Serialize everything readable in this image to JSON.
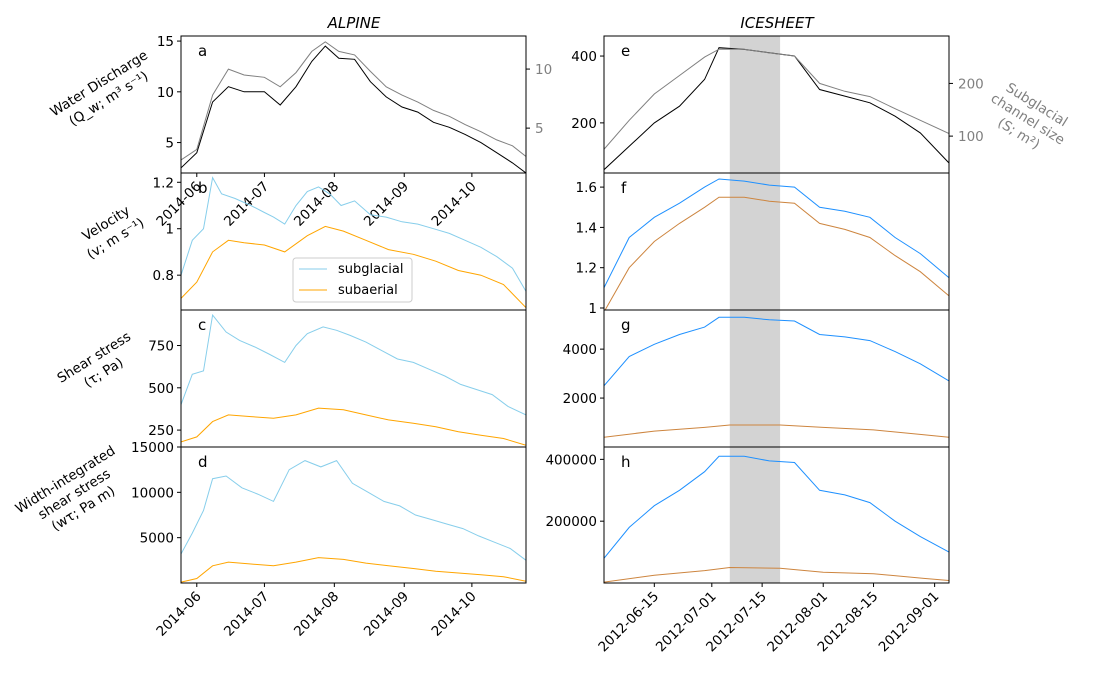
{
  "figure": {
    "columns": [
      {
        "key": "alpine",
        "title": "ALPINE"
      },
      {
        "key": "icesheet",
        "title": "ICESHEET"
      }
    ],
    "row_labels": [
      [
        "Water Discharge",
        "(Q_w; m³ s⁻¹)"
      ],
      [
        "Velocity",
        "(v; m s⁻¹)"
      ],
      [
        "Shear stress",
        "(τ; Pa)"
      ],
      [
        "Width-integrated",
        "shear stress",
        "(wτ; Pa m)"
      ]
    ],
    "right_label": [
      "Subglacial",
      "channel size",
      "(S; m²)"
    ],
    "colors": {
      "discharge": "#000000",
      "channel_size": "#808080",
      "subglacial_alpine": "#87ceeb",
      "subaerial_alpine": "#ffa500",
      "subglacial_icesheet": "#1e90ff",
      "subaerial_icesheet": "#cd853f",
      "shade": "#d3d3d3",
      "right_axis": "#808080"
    },
    "legend": {
      "entries": [
        "subglacial",
        "subaerial"
      ]
    }
  },
  "chart_data": [
    {
      "panel": "a",
      "column": "ALPINE",
      "type": "line",
      "x_type": "date",
      "xlim": [
        "2014-05-25",
        "2014-10-25"
      ],
      "xticks": [
        "2014-06",
        "2014-07",
        "2014-08",
        "2014-09",
        "2014-10"
      ],
      "ylabel": "Water Discharge (Q_w; m³ s⁻¹)",
      "ylim": [
        2,
        15.5
      ],
      "yticks": [
        5,
        10,
        15
      ],
      "y2lim": [
        1.2,
        12.8
      ],
      "y2ticks": [
        5,
        10
      ],
      "series": [
        {
          "axis": "left",
          "color": "#000000",
          "x": [
            "2014-05-25",
            "2014-06-01",
            "2014-06-08",
            "2014-06-15",
            "2014-06-22",
            "2014-07-01",
            "2014-07-08",
            "2014-07-15",
            "2014-07-22",
            "2014-07-28",
            "2014-08-03",
            "2014-08-10",
            "2014-08-17",
            "2014-08-24",
            "2014-08-31",
            "2014-09-07",
            "2014-09-14",
            "2014-09-21",
            "2014-09-28",
            "2014-10-05",
            "2014-10-12",
            "2014-10-19",
            "2014-10-25"
          ],
          "y": [
            2.5,
            4.0,
            9.0,
            10.5,
            10.0,
            10.0,
            8.7,
            10.5,
            13.0,
            14.5,
            13.3,
            13.2,
            11.0,
            9.5,
            8.5,
            8.0,
            7.0,
            6.5,
            5.8,
            5.0,
            4.0,
            3.0,
            2.0
          ]
        },
        {
          "axis": "right",
          "color": "#808080",
          "x": [
            "2014-05-25",
            "2014-06-01",
            "2014-06-08",
            "2014-06-15",
            "2014-06-22",
            "2014-07-01",
            "2014-07-08",
            "2014-07-15",
            "2014-07-22",
            "2014-07-28",
            "2014-08-03",
            "2014-08-10",
            "2014-08-17",
            "2014-08-24",
            "2014-08-31",
            "2014-09-07",
            "2014-09-14",
            "2014-09-21",
            "2014-09-28",
            "2014-10-05",
            "2014-10-12",
            "2014-10-19",
            "2014-10-25"
          ],
          "y": [
            2.3,
            3.2,
            7.8,
            10.0,
            9.5,
            9.3,
            8.5,
            9.7,
            11.5,
            12.3,
            11.5,
            11.2,
            9.8,
            8.5,
            7.8,
            7.2,
            6.5,
            6.0,
            5.3,
            4.7,
            4.0,
            3.5,
            2.6
          ]
        }
      ]
    },
    {
      "panel": "b",
      "column": "ALPINE",
      "type": "line",
      "x_type": "date",
      "xlim": [
        "2014-05-25",
        "2014-10-25"
      ],
      "ylabel": "Velocity (v; m s⁻¹)",
      "ylim": [
        0.65,
        1.24
      ],
      "yticks": [
        0.8,
        1.0,
        1.2
      ],
      "series": [
        {
          "name": "subglacial",
          "color": "#87ceeb",
          "x": [
            "2014-05-25",
            "2014-05-30",
            "2014-06-04",
            "2014-06-08",
            "2014-06-12",
            "2014-06-18",
            "2014-06-25",
            "2014-07-01",
            "2014-07-05",
            "2014-07-10",
            "2014-07-15",
            "2014-07-20",
            "2014-07-25",
            "2014-07-30",
            "2014-08-04",
            "2014-08-10",
            "2014-08-17",
            "2014-08-24",
            "2014-08-31",
            "2014-09-07",
            "2014-09-14",
            "2014-09-21",
            "2014-09-28",
            "2014-10-05",
            "2014-10-12",
            "2014-10-19",
            "2014-10-25"
          ],
          "y": [
            0.8,
            0.95,
            1.0,
            1.22,
            1.15,
            1.13,
            1.1,
            1.07,
            1.05,
            1.02,
            1.1,
            1.16,
            1.18,
            1.15,
            1.1,
            1.12,
            1.06,
            1.05,
            1.03,
            1.02,
            1.0,
            0.98,
            0.95,
            0.92,
            0.88,
            0.83,
            0.73
          ]
        },
        {
          "name": "subaerial",
          "color": "#ffa500",
          "x": [
            "2014-05-25",
            "2014-06-01",
            "2014-06-08",
            "2014-06-15",
            "2014-06-22",
            "2014-07-01",
            "2014-07-10",
            "2014-07-20",
            "2014-07-28",
            "2014-08-05",
            "2014-08-15",
            "2014-08-25",
            "2014-09-05",
            "2014-09-15",
            "2014-09-25",
            "2014-10-05",
            "2014-10-15",
            "2014-10-25"
          ],
          "y": [
            0.7,
            0.77,
            0.9,
            0.95,
            0.94,
            0.93,
            0.9,
            0.97,
            1.01,
            0.99,
            0.95,
            0.91,
            0.89,
            0.86,
            0.82,
            0.8,
            0.76,
            0.66
          ]
        }
      ]
    },
    {
      "panel": "c",
      "column": "ALPINE",
      "type": "line",
      "x_type": "date",
      "xlim": [
        "2014-05-25",
        "2014-10-25"
      ],
      "ylabel": "Shear stress (τ; Pa)",
      "ylim": [
        150,
        960
      ],
      "yticks": [
        250,
        500,
        750
      ],
      "series": [
        {
          "name": "subglacial",
          "color": "#87ceeb",
          "x": [
            "2014-05-25",
            "2014-05-30",
            "2014-06-04",
            "2014-06-08",
            "2014-06-14",
            "2014-06-20",
            "2014-06-27",
            "2014-07-03",
            "2014-07-10",
            "2014-07-15",
            "2014-07-20",
            "2014-07-27",
            "2014-08-02",
            "2014-08-08",
            "2014-08-15",
            "2014-08-22",
            "2014-08-29",
            "2014-09-05",
            "2014-09-12",
            "2014-09-19",
            "2014-09-26",
            "2014-10-03",
            "2014-10-10",
            "2014-10-17",
            "2014-10-25"
          ],
          "y": [
            400,
            580,
            600,
            930,
            830,
            780,
            740,
            700,
            650,
            750,
            820,
            860,
            840,
            810,
            770,
            720,
            670,
            650,
            610,
            570,
            520,
            490,
            460,
            390,
            340
          ]
        },
        {
          "name": "subaerial",
          "color": "#ffa500",
          "x": [
            "2014-05-25",
            "2014-06-01",
            "2014-06-08",
            "2014-06-15",
            "2014-06-25",
            "2014-07-05",
            "2014-07-15",
            "2014-07-25",
            "2014-08-05",
            "2014-08-15",
            "2014-08-25",
            "2014-09-05",
            "2014-09-15",
            "2014-09-25",
            "2014-10-05",
            "2014-10-15",
            "2014-10-25"
          ],
          "y": [
            180,
            210,
            300,
            340,
            330,
            320,
            340,
            380,
            370,
            340,
            310,
            290,
            270,
            240,
            220,
            200,
            160
          ]
        }
      ]
    },
    {
      "panel": "d",
      "column": "ALPINE",
      "type": "line",
      "x_type": "date",
      "xlim": [
        "2014-05-25",
        "2014-10-25"
      ],
      "xticks": [
        "2014-06",
        "2014-07",
        "2014-08",
        "2014-09",
        "2014-10"
      ],
      "ylabel": "Width-integrated shear stress (wτ; Pa m)",
      "ylim": [
        0,
        15000
      ],
      "yticks": [
        5000,
        10000,
        15000
      ],
      "series": [
        {
          "name": "subglacial",
          "color": "#87ceeb",
          "x": [
            "2014-05-25",
            "2014-05-30",
            "2014-06-04",
            "2014-06-08",
            "2014-06-14",
            "2014-06-21",
            "2014-06-28",
            "2014-07-05",
            "2014-07-12",
            "2014-07-19",
            "2014-07-26",
            "2014-08-02",
            "2014-08-09",
            "2014-08-16",
            "2014-08-23",
            "2014-08-30",
            "2014-09-06",
            "2014-09-13",
            "2014-09-20",
            "2014-09-27",
            "2014-10-04",
            "2014-10-11",
            "2014-10-18",
            "2014-10-25"
          ],
          "y": [
            3200,
            5500,
            8000,
            11500,
            11800,
            10500,
            9800,
            9000,
            12500,
            13500,
            12800,
            13500,
            11000,
            10000,
            9000,
            8500,
            7500,
            7000,
            6500,
            6000,
            5200,
            4500,
            3800,
            2500
          ]
        },
        {
          "name": "subaerial",
          "color": "#ffa500",
          "x": [
            "2014-05-25",
            "2014-06-01",
            "2014-06-08",
            "2014-06-15",
            "2014-06-25",
            "2014-07-05",
            "2014-07-15",
            "2014-07-25",
            "2014-08-05",
            "2014-08-15",
            "2014-08-25",
            "2014-09-05",
            "2014-09-15",
            "2014-09-25",
            "2014-10-05",
            "2014-10-15",
            "2014-10-25"
          ],
          "y": [
            100,
            500,
            1900,
            2300,
            2100,
            1900,
            2300,
            2800,
            2600,
            2200,
            1900,
            1600,
            1300,
            1100,
            900,
            700,
            200
          ]
        }
      ]
    },
    {
      "panel": "e",
      "column": "ICESHEET",
      "type": "line",
      "x_type": "date",
      "xlim": [
        "2012-06-01",
        "2012-09-05"
      ],
      "shaded_span": [
        "2012-07-06",
        "2012-07-20"
      ],
      "ylim": [
        50,
        460
      ],
      "yticks": [
        200,
        400
      ],
      "y2label": "Subglacial channel size (S; m²)",
      "y2lim": [
        30,
        290
      ],
      "y2ticks": [
        100,
        200
      ],
      "series": [
        {
          "axis": "left",
          "color": "#000000",
          "x": [
            "2012-06-01",
            "2012-06-08",
            "2012-06-15",
            "2012-06-22",
            "2012-06-29",
            "2012-07-03",
            "2012-07-10",
            "2012-07-17",
            "2012-07-24",
            "2012-07-31",
            "2012-08-07",
            "2012-08-14",
            "2012-08-21",
            "2012-08-28",
            "2012-09-05"
          ],
          "y": [
            60,
            130,
            200,
            250,
            330,
            425,
            420,
            410,
            400,
            300,
            280,
            260,
            220,
            170,
            80
          ]
        },
        {
          "axis": "right",
          "color": "#808080",
          "x": [
            "2012-06-01",
            "2012-06-08",
            "2012-06-15",
            "2012-06-22",
            "2012-06-29",
            "2012-07-03",
            "2012-07-10",
            "2012-07-17",
            "2012-07-24",
            "2012-07-31",
            "2012-08-07",
            "2012-08-14",
            "2012-08-21",
            "2012-08-28",
            "2012-09-05"
          ],
          "y": [
            75,
            130,
            180,
            215,
            250,
            265,
            265,
            258,
            252,
            200,
            185,
            175,
            152,
            130,
            105
          ]
        }
      ]
    },
    {
      "panel": "f",
      "column": "ICESHEET",
      "type": "line",
      "x_type": "date",
      "xlim": [
        "2012-06-01",
        "2012-09-05"
      ],
      "shaded_span": [
        "2012-07-06",
        "2012-07-20"
      ],
      "ylim": [
        0.99,
        1.67
      ],
      "yticks": [
        1.0,
        1.2,
        1.4,
        1.6
      ],
      "series": [
        {
          "name": "subglacial",
          "color": "#1e90ff",
          "x": [
            "2012-06-01",
            "2012-06-08",
            "2012-06-15",
            "2012-06-22",
            "2012-06-29",
            "2012-07-03",
            "2012-07-10",
            "2012-07-17",
            "2012-07-24",
            "2012-07-31",
            "2012-08-07",
            "2012-08-14",
            "2012-08-21",
            "2012-08-28",
            "2012-09-05"
          ],
          "y": [
            1.1,
            1.35,
            1.45,
            1.52,
            1.6,
            1.64,
            1.63,
            1.61,
            1.6,
            1.5,
            1.48,
            1.45,
            1.35,
            1.27,
            1.15
          ]
        },
        {
          "name": "subaerial",
          "color": "#cd853f",
          "x": [
            "2012-06-01",
            "2012-06-08",
            "2012-06-15",
            "2012-06-22",
            "2012-06-29",
            "2012-07-03",
            "2012-07-10",
            "2012-07-17",
            "2012-07-24",
            "2012-07-31",
            "2012-08-07",
            "2012-08-14",
            "2012-08-21",
            "2012-08-28",
            "2012-09-05"
          ],
          "y": [
            0.98,
            1.2,
            1.33,
            1.42,
            1.5,
            1.55,
            1.55,
            1.53,
            1.52,
            1.42,
            1.39,
            1.35,
            1.26,
            1.18,
            1.06
          ]
        }
      ]
    },
    {
      "panel": "g",
      "column": "ICESHEET",
      "type": "line",
      "x_type": "date",
      "xlim": [
        "2012-06-01",
        "2012-09-05"
      ],
      "shaded_span": [
        "2012-07-06",
        "2012-07-20"
      ],
      "ylim": [
        0,
        5600
      ],
      "yticks": [
        2000,
        4000
      ],
      "series": [
        {
          "name": "subglacial",
          "color": "#1e90ff",
          "x": [
            "2012-06-01",
            "2012-06-08",
            "2012-06-15",
            "2012-06-22",
            "2012-06-29",
            "2012-07-03",
            "2012-07-10",
            "2012-07-17",
            "2012-07-24",
            "2012-07-31",
            "2012-08-07",
            "2012-08-14",
            "2012-08-21",
            "2012-08-28",
            "2012-09-05"
          ],
          "y": [
            2500,
            3700,
            4200,
            4600,
            4900,
            5300,
            5300,
            5200,
            5150,
            4600,
            4500,
            4350,
            3900,
            3400,
            2700
          ]
        },
        {
          "name": "subaerial",
          "color": "#cd853f",
          "x": [
            "2012-06-01",
            "2012-06-15",
            "2012-06-29",
            "2012-07-06",
            "2012-07-20",
            "2012-08-01",
            "2012-08-15",
            "2012-08-29",
            "2012-09-05"
          ],
          "y": [
            400,
            650,
            800,
            900,
            900,
            800,
            700,
            500,
            400
          ]
        }
      ]
    },
    {
      "panel": "h",
      "column": "ICESHEET",
      "type": "line",
      "x_type": "date",
      "xlim": [
        "2012-06-01",
        "2012-09-05"
      ],
      "xticks": [
        "2012-06-15",
        "2012-07-01",
        "2012-07-15",
        "2012-08-01",
        "2012-08-15",
        "2012-09-01"
      ],
      "shaded_span": [
        "2012-07-06",
        "2012-07-20"
      ],
      "ylim": [
        0,
        440000
      ],
      "yticks": [
        200000,
        400000
      ],
      "series": [
        {
          "name": "subglacial",
          "color": "#1e90ff",
          "x": [
            "2012-06-01",
            "2012-06-08",
            "2012-06-15",
            "2012-06-22",
            "2012-06-29",
            "2012-07-03",
            "2012-07-10",
            "2012-07-17",
            "2012-07-24",
            "2012-07-31",
            "2012-08-07",
            "2012-08-14",
            "2012-08-21",
            "2012-08-28",
            "2012-09-05"
          ],
          "y": [
            80000,
            180000,
            250000,
            300000,
            360000,
            410000,
            410000,
            395000,
            390000,
            300000,
            285000,
            260000,
            200000,
            150000,
            100000
          ]
        },
        {
          "name": "subaerial",
          "color": "#cd853f",
          "x": [
            "2012-06-01",
            "2012-06-15",
            "2012-06-29",
            "2012-07-06",
            "2012-07-20",
            "2012-08-01",
            "2012-08-15",
            "2012-08-29",
            "2012-09-05"
          ],
          "y": [
            3000,
            25000,
            40000,
            50000,
            48000,
            35000,
            30000,
            15000,
            8000
          ]
        }
      ]
    }
  ]
}
